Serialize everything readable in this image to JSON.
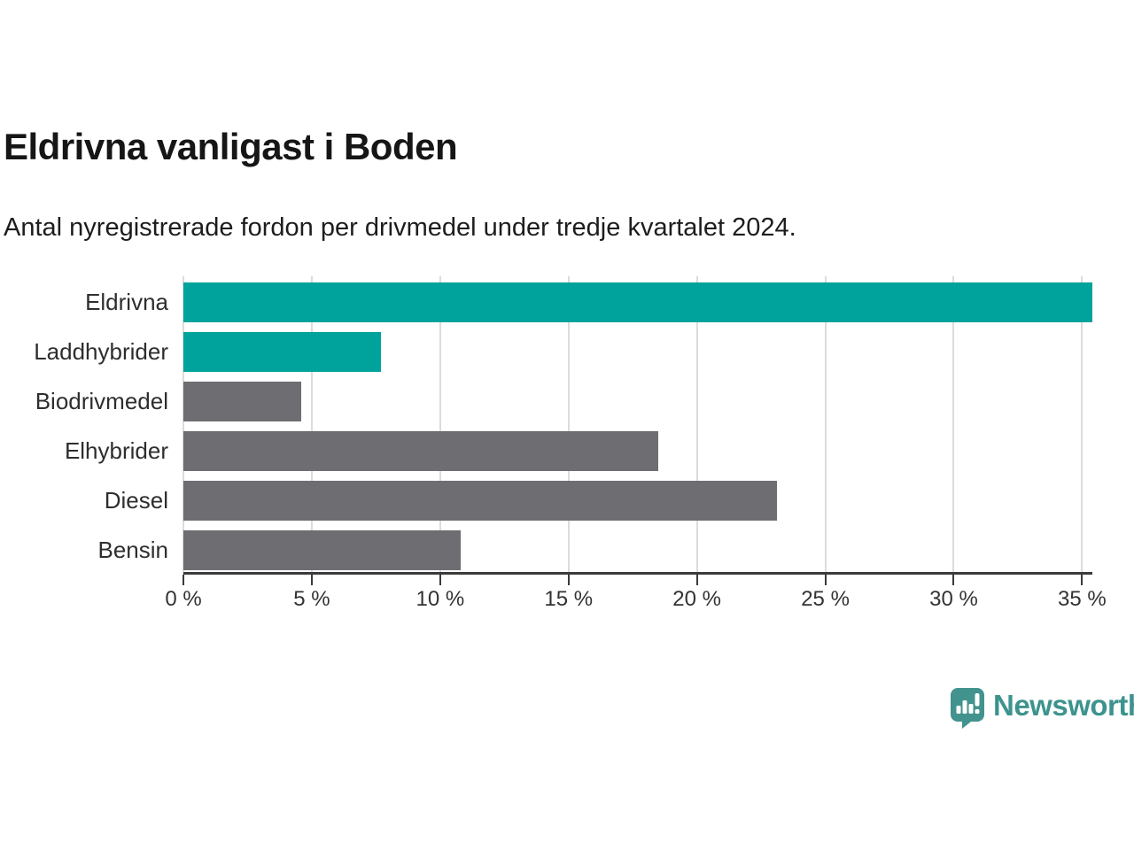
{
  "header": {
    "title": "Eldrivna vanligast i Boden",
    "subtitle": "Antal nyregistrerade fordon per drivmedel under tredje kvartalet 2024."
  },
  "chart_data": {
    "type": "bar",
    "orientation": "horizontal",
    "title": "Eldrivna vanligast i Boden",
    "subtitle": "Antal nyregistrerade fordon per drivmedel under tredje kvartalet 2024.",
    "categories": [
      "Eldrivna",
      "Laddhybrider",
      "Biodrivmedel",
      "Elhybrider",
      "Diesel",
      "Bensin"
    ],
    "values": [
      35.4,
      7.7,
      4.6,
      18.5,
      23.1,
      10.8
    ],
    "unit": "%",
    "bar_colors": [
      "#00a39b",
      "#00a39b",
      "#6e6e72",
      "#6e6e72",
      "#6e6e72",
      "#6e6e72"
    ],
    "highlight_color": "#00a39b",
    "default_color": "#6e6e72",
    "xlabel": "",
    "ylabel": "",
    "xlim": [
      0,
      35.4
    ],
    "x_ticks": [
      0,
      5,
      10,
      15,
      20,
      25,
      30,
      35
    ],
    "x_tick_labels": [
      "0 %",
      "5 %",
      "10 %",
      "15 %",
      "20 %",
      "25 %",
      "30 %",
      "35 %"
    ],
    "grid": "vertical",
    "gridline_color": "#dcdcdc",
    "axis_color": "#3b3b3b",
    "legend": "none"
  },
  "branding": {
    "logo_text": "Newsworthy",
    "logo_color": "#3d938e",
    "logo_icon": "newsworthy-speech-bubble-chart-icon"
  }
}
